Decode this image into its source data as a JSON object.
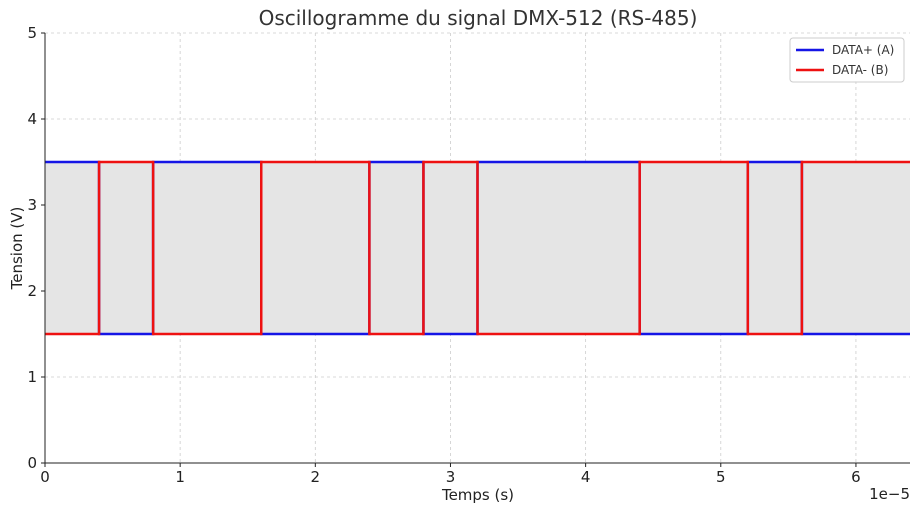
{
  "chart_data": {
    "type": "line",
    "title": "Oscillogramme du signal DMX-512 (RS-485)",
    "xlabel": "Temps (s)",
    "ylabel": "Tension (V)",
    "x_offset_text": "1e−5",
    "xlim": [
      0,
      6.4e-05
    ],
    "ylim": [
      0,
      5
    ],
    "x_tick_values": [
      0,
      1e-05,
      2e-05,
      3e-05,
      4e-05,
      5e-05,
      6e-05
    ],
    "x_tick_labels": [
      "0",
      "1",
      "2",
      "3",
      "4",
      "5",
      "6"
    ],
    "y_ticks": [
      0,
      1,
      2,
      3,
      4,
      5
    ],
    "grid": true,
    "legend_position": "top-right",
    "fill_between": {
      "y_low": 1.5,
      "y_high": 3.5,
      "color": "#e5e5e5"
    },
    "step_x": [
      0,
      4e-06,
      8e-06,
      1.6e-05,
      2.4e-05,
      2.8e-05,
      3.2e-05,
      4.4e-05,
      5.2e-05,
      5.6e-05,
      6.4e-05
    ],
    "series": [
      {
        "name": "DATA+ (A)",
        "color": "#1515e6",
        "values": [
          3.5,
          1.5,
          3.5,
          1.5,
          3.5,
          1.5,
          3.5,
          1.5,
          3.5,
          1.5
        ]
      },
      {
        "name": "DATA- (B)",
        "color": "#ee1111",
        "values": [
          1.5,
          3.5,
          1.5,
          3.5,
          1.5,
          3.5,
          1.5,
          3.5,
          1.5,
          3.5
        ]
      }
    ]
  }
}
